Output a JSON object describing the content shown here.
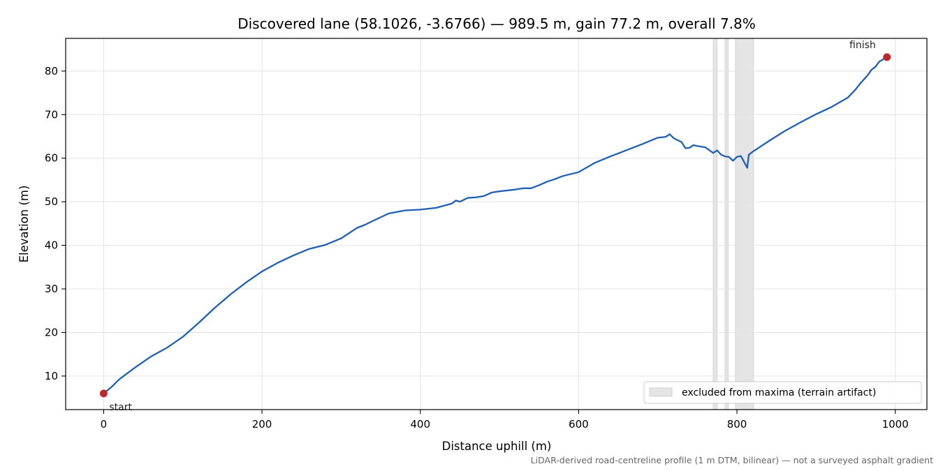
{
  "chart_data": {
    "type": "line",
    "title": "Discovered lane (58.1026, -3.6766) — 989.5 m, gain 77.2 m, overall 7.8%",
    "xlabel": "Distance uphill (m)",
    "ylabel": "Elevation (m)",
    "xlim": [
      -48,
      1040
    ],
    "ylim": [
      2.3,
      87.5
    ],
    "xticks": [
      0,
      200,
      400,
      600,
      800,
      1000
    ],
    "yticks": [
      10,
      20,
      30,
      40,
      50,
      60,
      70,
      80
    ],
    "grid": true,
    "legend_placement": "lower-right",
    "legend": [
      {
        "label": "excluded from maxima (terrain artifact)",
        "style": "band"
      }
    ],
    "excluded_ranges": [
      [
        770,
        775
      ],
      [
        785,
        789
      ],
      [
        798,
        821
      ]
    ],
    "series": [
      {
        "color": "#1f5fb4",
        "x": [
          0,
          10,
          20,
          40,
          60,
          80,
          100,
          120,
          140,
          160,
          180,
          200,
          220,
          240,
          260,
          280,
          300,
          320,
          330,
          340,
          360,
          380,
          400,
          420,
          440,
          445,
          450,
          460,
          470,
          480,
          490,
          500,
          520,
          530,
          540,
          550,
          560,
          570,
          580,
          600,
          620,
          640,
          660,
          680,
          700,
          710,
          715,
          720,
          730,
          735,
          740,
          745,
          750,
          760,
          770,
          775,
          780,
          785,
          790,
          795,
          800,
          805,
          810,
          813,
          815,
          820,
          840,
          860,
          880,
          900,
          920,
          940,
          950,
          955,
          960,
          965,
          970,
          975,
          980,
          989.5
        ],
        "y": [
          6.0,
          7.5,
          9.3,
          12.0,
          14.5,
          16.5,
          19.0,
          22.2,
          25.6,
          28.7,
          31.5,
          34.0,
          36.0,
          37.7,
          39.2,
          40.1,
          41.6,
          44.0,
          44.7,
          45.6,
          47.3,
          48.0,
          48.2,
          48.6,
          49.6,
          50.3,
          50.0,
          50.9,
          51.0,
          51.3,
          52.1,
          52.4,
          52.8,
          53.1,
          53.1,
          53.8,
          54.6,
          55.2,
          55.9,
          56.8,
          58.9,
          60.4,
          61.8,
          63.2,
          64.7,
          64.9,
          65.5,
          64.6,
          63.7,
          62.3,
          62.4,
          63.0,
          62.8,
          62.5,
          61.2,
          61.8,
          60.8,
          60.4,
          60.3,
          59.4,
          60.3,
          60.5,
          58.8,
          57.8,
          60.8,
          61.5,
          63.9,
          66.2,
          68.2,
          70.1,
          71.8,
          73.9,
          75.8,
          77.0,
          78.0,
          79.0,
          80.3,
          81.0,
          82.2,
          83.2
        ]
      }
    ],
    "annotations": [
      {
        "label": "start",
        "x": 0,
        "y": 6.0
      },
      {
        "label": "finish",
        "x": 989.5,
        "y": 83.2
      }
    ],
    "marker_color": "#c0272d",
    "band_color": "#e5e5e5"
  },
  "footnote": "LiDAR-derived road-centreline profile (1 m DTM, bilinear) — not a surveyed asphalt gradient"
}
